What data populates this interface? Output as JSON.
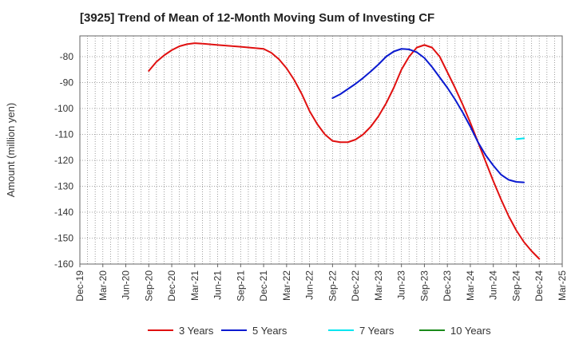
{
  "chart_data": {
    "type": "line",
    "title": "[3925]  Trend of Mean of 12-Month Moving Sum of Investing CF",
    "xlabel": "",
    "ylabel": "Amount (million yen)",
    "ylim": [
      -160,
      -72
    ],
    "yticks": [
      -80,
      -90,
      -100,
      -110,
      -120,
      -130,
      -140,
      -150,
      -160
    ],
    "xticks": [
      "Dec-19",
      "Mar-20",
      "Jun-20",
      "Sep-20",
      "Dec-20",
      "Mar-21",
      "Jun-21",
      "Sep-21",
      "Dec-21",
      "Mar-22",
      "Jun-22",
      "Sep-22",
      "Dec-22",
      "Mar-23",
      "Jun-23",
      "Sep-23",
      "Dec-23",
      "Mar-24",
      "Jun-24",
      "Sep-24",
      "Dec-24",
      "Mar-25"
    ],
    "grid": true,
    "legend_position": "bottom",
    "series": [
      {
        "name": "3 Years",
        "color": "#e01010",
        "points": [
          [
            9,
            -85.5
          ],
          [
            10,
            -82
          ],
          [
            11,
            -79.5
          ],
          [
            12,
            -77.5
          ],
          [
            13,
            -76
          ],
          [
            14,
            -75.2
          ],
          [
            15,
            -74.8
          ],
          [
            16,
            -75
          ],
          [
            18,
            -75.5
          ],
          [
            21,
            -76.2
          ],
          [
            24,
            -77
          ],
          [
            25,
            -78.5
          ],
          [
            26,
            -81
          ],
          [
            27,
            -84.5
          ],
          [
            28,
            -89
          ],
          [
            29,
            -94.5
          ],
          [
            30,
            -101
          ],
          [
            31,
            -106
          ],
          [
            32,
            -110
          ],
          [
            33,
            -112.5
          ],
          [
            34,
            -113
          ],
          [
            35,
            -113
          ],
          [
            36,
            -112
          ],
          [
            37,
            -110
          ],
          [
            38,
            -107
          ],
          [
            39,
            -103
          ],
          [
            40,
            -98
          ],
          [
            41,
            -92
          ],
          [
            42,
            -85
          ],
          [
            43,
            -80
          ],
          [
            44,
            -76.5
          ],
          [
            45,
            -75.5
          ],
          [
            46,
            -76.5
          ],
          [
            47,
            -80
          ],
          [
            48,
            -86
          ],
          [
            49,
            -92
          ],
          [
            50,
            -98.5
          ],
          [
            51,
            -105.5
          ],
          [
            52,
            -113
          ],
          [
            53,
            -120.5
          ],
          [
            54,
            -128
          ],
          [
            55,
            -135
          ],
          [
            56,
            -141.5
          ],
          [
            57,
            -147
          ],
          [
            58,
            -151.5
          ],
          [
            59,
            -155
          ],
          [
            60,
            -158
          ]
        ]
      },
      {
        "name": "5 Years",
        "color": "#0a1ad0",
        "points": [
          [
            33,
            -96
          ],
          [
            34,
            -94.5
          ],
          [
            35,
            -92.5
          ],
          [
            36,
            -90.5
          ],
          [
            37,
            -88.2
          ],
          [
            38,
            -85.7
          ],
          [
            39,
            -83
          ],
          [
            40,
            -80
          ],
          [
            41,
            -78
          ],
          [
            42,
            -77
          ],
          [
            43,
            -77.2
          ],
          [
            44,
            -78.3
          ],
          [
            45,
            -80.5
          ],
          [
            46,
            -84
          ],
          [
            47,
            -88
          ],
          [
            48,
            -92
          ],
          [
            49,
            -96.5
          ],
          [
            50,
            -101.5
          ],
          [
            51,
            -107
          ],
          [
            52,
            -113
          ],
          [
            53,
            -118
          ],
          [
            54,
            -122
          ],
          [
            55,
            -125.5
          ],
          [
            56,
            -127.5
          ],
          [
            57,
            -128.3
          ],
          [
            58,
            -128.5
          ]
        ]
      },
      {
        "name": "7 Years",
        "color": "#00e5f0",
        "points": [
          [
            57,
            -111.8
          ],
          [
            58,
            -111.5
          ]
        ]
      },
      {
        "name": "10 Years",
        "color": "#1a8a1a",
        "points": []
      }
    ]
  }
}
